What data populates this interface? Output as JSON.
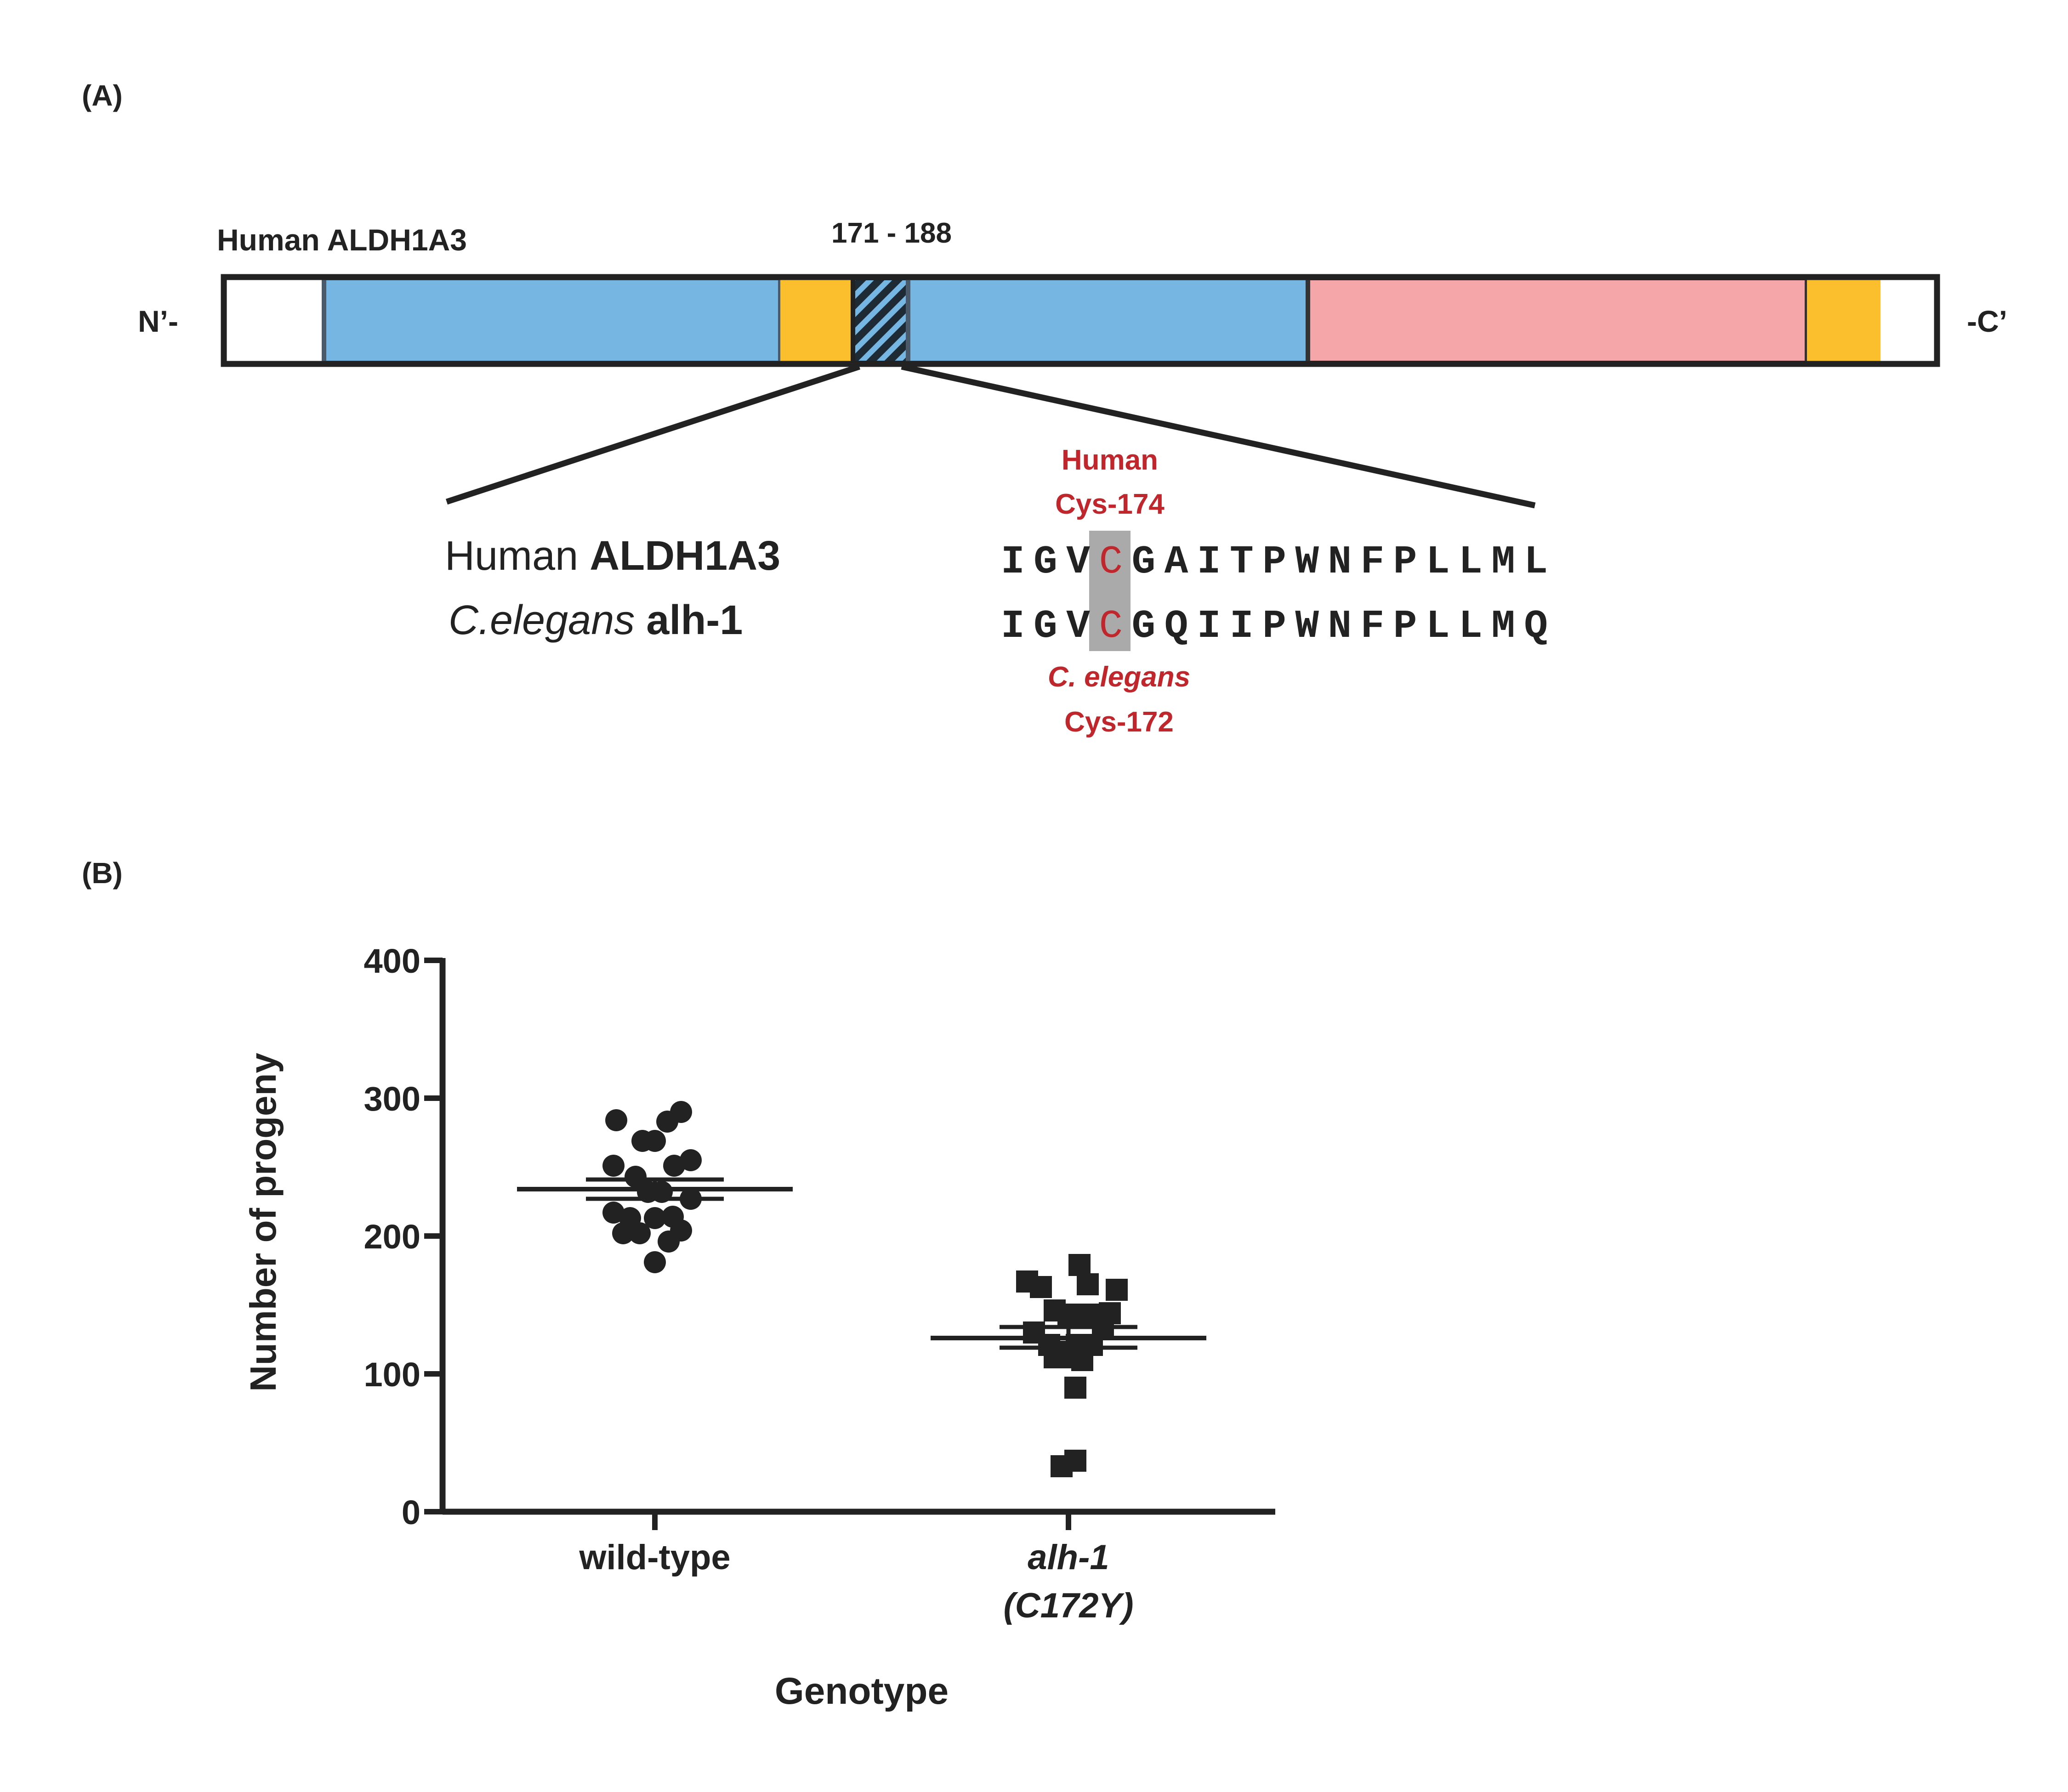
{
  "panel_a": {
    "label": "(A)",
    "protein_title": "Human ALDH1A3",
    "range_label": "171 - 188",
    "n_term": "N’-",
    "c_term": "-C’",
    "colors": {
      "blue": "#75b6e3",
      "orange": "#fbbf2d",
      "pink": "#f4a6a8",
      "outline": "#222222",
      "highlight": "#aaaaaa",
      "residue": "#c0272d"
    },
    "alignment": {
      "human_prefix": "Human ",
      "human_gene": "ALDH1A3",
      "worm_prefix": "C.elegans",
      "worm_gene": " alh-1",
      "human_seq_pre": "IGV",
      "human_seq_c": "C",
      "human_seq_post": "GAITPWNFPLLML",
      "worm_seq_pre": "IGV",
      "worm_seq_c": "C",
      "worm_seq_post": "GQIIPWNFPLLMQ",
      "human_cys_line1": "Human",
      "human_cys_line2": "Cys-174",
      "worm_cys_line1": "C. elegans",
      "worm_cys_line2": "Cys-172"
    }
  },
  "panel_b": {
    "label": "(B)"
  },
  "chart_data": {
    "type": "scatter",
    "xlabel": "Genotype",
    "ylabel": "Number of progeny",
    "ylim": [
      0,
      400
    ],
    "yticks": [
      "0",
      "100",
      "200",
      "300",
      "400"
    ],
    "categories": [
      {
        "line1": "wild-type",
        "line2": ""
      },
      {
        "line1": "alh-1",
        "line2": "(C172Y)"
      }
    ],
    "series": [
      {
        "marker": "circle",
        "mean": 234,
        "sem": [
          227,
          241
        ],
        "points": [
          {
            "x": -0.28,
            "y": 284
          },
          {
            "x": -0.09,
            "y": 269
          },
          {
            "x": 0.0,
            "y": 269
          },
          {
            "x": 0.09,
            "y": 283
          },
          {
            "x": 0.19,
            "y": 290
          },
          {
            "x": -0.3,
            "y": 251
          },
          {
            "x": -0.14,
            "y": 243
          },
          {
            "x": 0.14,
            "y": 251
          },
          {
            "x": 0.26,
            "y": 255
          },
          {
            "x": -0.05,
            "y": 232
          },
          {
            "x": 0.05,
            "y": 232
          },
          {
            "x": -0.3,
            "y": 217
          },
          {
            "x": -0.18,
            "y": 213
          },
          {
            "x": 0.0,
            "y": 213
          },
          {
            "x": 0.13,
            "y": 214
          },
          {
            "x": 0.26,
            "y": 227
          },
          {
            "x": -0.23,
            "y": 202
          },
          {
            "x": -0.11,
            "y": 202
          },
          {
            "x": 0.19,
            "y": 204
          },
          {
            "x": 0.1,
            "y": 196
          },
          {
            "x": 0.0,
            "y": 181
          }
        ]
      },
      {
        "marker": "square",
        "mean": 126,
        "sem": [
          119,
          134
        ],
        "points": [
          {
            "x": -0.3,
            "y": 167
          },
          {
            "x": -0.2,
            "y": 163
          },
          {
            "x": 0.08,
            "y": 179
          },
          {
            "x": 0.14,
            "y": 165
          },
          {
            "x": 0.35,
            "y": 161
          },
          {
            "x": -0.1,
            "y": 146
          },
          {
            "x": 0.0,
            "y": 143
          },
          {
            "x": 0.15,
            "y": 143
          },
          {
            "x": 0.3,
            "y": 144
          },
          {
            "x": -0.25,
            "y": 130
          },
          {
            "x": 0.25,
            "y": 134
          },
          {
            "x": -0.14,
            "y": 121
          },
          {
            "x": -0.06,
            "y": 116
          },
          {
            "x": 0.06,
            "y": 121
          },
          {
            "x": -0.1,
            "y": 112
          },
          {
            "x": 0.0,
            "y": 112
          },
          {
            "x": 0.1,
            "y": 110
          },
          {
            "x": 0.05,
            "y": 90
          },
          {
            "x": -0.05,
            "y": 33
          },
          {
            "x": 0.05,
            "y": 37
          },
          {
            "x": 0.17,
            "y": 121
          }
        ]
      }
    ]
  }
}
